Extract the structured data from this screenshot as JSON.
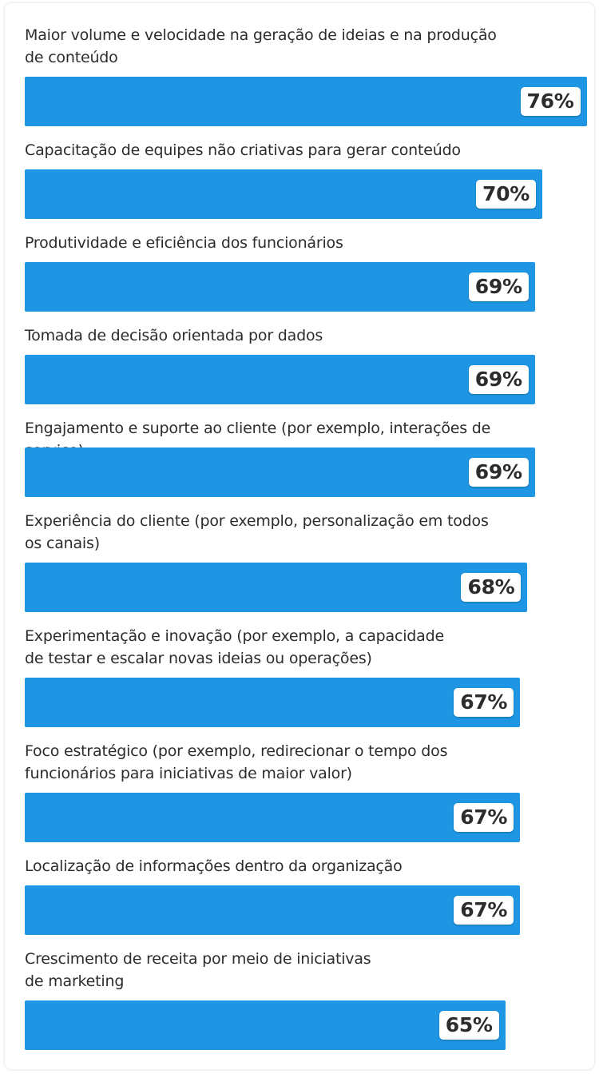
{
  "chart_data": {
    "type": "bar",
    "orientation": "horizontal",
    "bar_color": "#1e96e4",
    "xlim": [
      0,
      83.4
    ],
    "categories": [
      [
        "Maior volume e velocidade na geração de ideias e na produção",
        "de conteúdo"
      ],
      [
        "Capacitação de equipes não criativas para gerar conteúdo"
      ],
      [
        "Produtividade e eficiência dos funcionários"
      ],
      [
        "Tomada de decisão orientada por dados"
      ],
      [
        "Engajamento e suporte ao cliente (por exemplo, interações de serviço)"
      ],
      [
        "Experiência do cliente (por exemplo, personalização em todos",
        "os canais)"
      ],
      [
        "Experimentação e inovação (por exemplo, a capacidade",
        "de testar e escalar novas ideias ou operações)"
      ],
      [
        "Foco estratégico (por exemplo, redirecionar o tempo dos",
        "funcionários para iniciativas de maior valor)"
      ],
      [
        "Localização de informações dentro da organização"
      ],
      [
        "Crescimento de receita por meio de iniciativas",
        "de marketing"
      ]
    ],
    "values": [
      76,
      70,
      69,
      69,
      69,
      68,
      67,
      67,
      67,
      65
    ],
    "value_labels": [
      "76%",
      "70%",
      "69%",
      "69%",
      "69%",
      "68%",
      "67%",
      "67%",
      "67%",
      "65%"
    ]
  }
}
